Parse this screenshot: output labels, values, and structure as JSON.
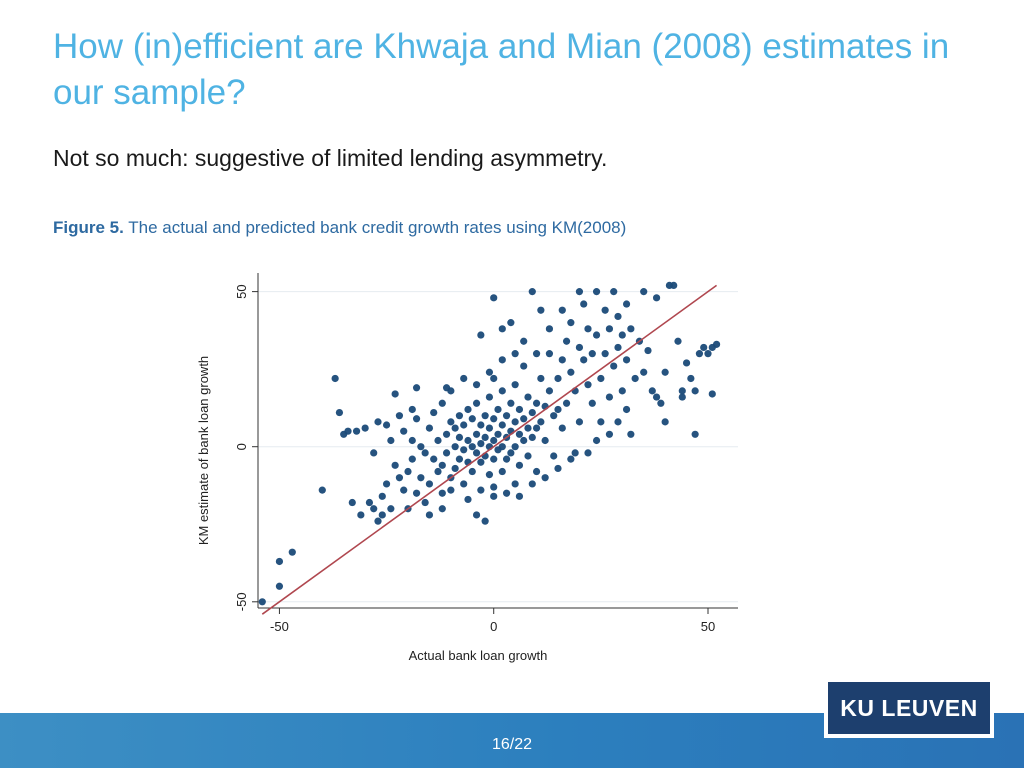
{
  "slide": {
    "title": "How (in)efficient are Khwaja and Mian (2008) estimates in our sample?",
    "subtitle": "Not so much: suggestive of limited lending asymmetry.",
    "caption_label": "Figure 5.",
    "caption_text": " The actual and predicted bank credit growth rates using KM(2008)",
    "page_number": "16/22",
    "logo_text": "KU LEUVEN"
  },
  "colors": {
    "title": "#4fb3e3",
    "points": "#1a4a78",
    "fit_line": "#b0474f",
    "footer": "#2c7fbe",
    "logo_bg": "#1d3f6e"
  },
  "chart_data": {
    "type": "scatter",
    "title": "",
    "xlabel": "Actual bank loan growth",
    "ylabel": "KM estimate of bank loan growth",
    "xlim": [
      -55,
      57
    ],
    "ylim": [
      -52,
      56
    ],
    "xticks": [
      -50,
      0,
      50
    ],
    "yticks": [
      -50,
      0,
      50
    ],
    "grid": true,
    "fit_line": {
      "x": [
        -54,
        52
      ],
      "y": [
        -54,
        52
      ]
    },
    "series": [
      {
        "points": [
          [
            -54,
            -50
          ],
          [
            -50,
            -45
          ],
          [
            -50,
            -37
          ],
          [
            -47,
            -34
          ],
          [
            -40,
            -14
          ],
          [
            -37,
            22
          ],
          [
            -36,
            11
          ],
          [
            -35,
            4
          ],
          [
            -34,
            5
          ],
          [
            -32,
            5
          ],
          [
            -31,
            -22
          ],
          [
            -30,
            6
          ],
          [
            -29,
            -18
          ],
          [
            -28,
            -20
          ],
          [
            -27,
            -24
          ],
          [
            -26,
            -22
          ],
          [
            -26,
            -16
          ],
          [
            -25,
            -12
          ],
          [
            -25,
            7
          ],
          [
            -24,
            2
          ],
          [
            -24,
            -20
          ],
          [
            -23,
            17
          ],
          [
            -23,
            -6
          ],
          [
            -22,
            -10
          ],
          [
            -22,
            10
          ],
          [
            -21,
            5
          ],
          [
            -21,
            -14
          ],
          [
            -20,
            -8
          ],
          [
            -20,
            -20
          ],
          [
            -19,
            2
          ],
          [
            -19,
            -4
          ],
          [
            -18,
            -15
          ],
          [
            -18,
            9
          ],
          [
            -17,
            0
          ],
          [
            -17,
            -10
          ],
          [
            -16,
            -2
          ],
          [
            -16,
            -18
          ],
          [
            -15,
            6
          ],
          [
            -15,
            -12
          ],
          [
            -14,
            -4
          ],
          [
            -14,
            11
          ],
          [
            -13,
            -8
          ],
          [
            -13,
            2
          ],
          [
            -12,
            14
          ],
          [
            -12,
            -6
          ],
          [
            -12,
            -15
          ],
          [
            -11,
            4
          ],
          [
            -11,
            -2
          ],
          [
            -10,
            8
          ],
          [
            -10,
            -10
          ],
          [
            -10,
            18
          ],
          [
            -9,
            0
          ],
          [
            -9,
            6
          ],
          [
            -9,
            -7
          ],
          [
            -8,
            3
          ],
          [
            -8,
            -4
          ],
          [
            -8,
            10
          ],
          [
            -7,
            -1
          ],
          [
            -7,
            7
          ],
          [
            -7,
            -12
          ],
          [
            -6,
            2
          ],
          [
            -6,
            12
          ],
          [
            -6,
            -5
          ],
          [
            -5,
            0
          ],
          [
            -5,
            9
          ],
          [
            -5,
            -8
          ],
          [
            -4,
            4
          ],
          [
            -4,
            -2
          ],
          [
            -4,
            14
          ],
          [
            -3,
            1
          ],
          [
            -3,
            7
          ],
          [
            -3,
            -5
          ],
          [
            -3,
            -14
          ],
          [
            -2,
            3
          ],
          [
            -2,
            10
          ],
          [
            -2,
            -3
          ],
          [
            -1,
            0
          ],
          [
            -1,
            6
          ],
          [
            -1,
            -9
          ],
          [
            -1,
            16
          ],
          [
            0,
            2
          ],
          [
            0,
            -4
          ],
          [
            0,
            9
          ],
          [
            0,
            22
          ],
          [
            0,
            -16
          ],
          [
            1,
            4
          ],
          [
            1,
            -1
          ],
          [
            1,
            12
          ],
          [
            2,
            0
          ],
          [
            2,
            7
          ],
          [
            2,
            -8
          ],
          [
            2,
            18
          ],
          [
            3,
            3
          ],
          [
            3,
            10
          ],
          [
            3,
            -4
          ],
          [
            4,
            5
          ],
          [
            4,
            -2
          ],
          [
            4,
            14
          ],
          [
            5,
            8
          ],
          [
            5,
            0
          ],
          [
            5,
            20
          ],
          [
            5,
            -12
          ],
          [
            6,
            4
          ],
          [
            6,
            12
          ],
          [
            6,
            -6
          ],
          [
            7,
            9
          ],
          [
            7,
            2
          ],
          [
            7,
            26
          ],
          [
            8,
            6
          ],
          [
            8,
            -3
          ],
          [
            8,
            16
          ],
          [
            9,
            11
          ],
          [
            9,
            3
          ],
          [
            10,
            14
          ],
          [
            10,
            6
          ],
          [
            10,
            -8
          ],
          [
            11,
            8
          ],
          [
            11,
            22
          ],
          [
            12,
            13
          ],
          [
            12,
            2
          ],
          [
            13,
            18
          ],
          [
            13,
            30
          ],
          [
            14,
            10
          ],
          [
            14,
            -3
          ],
          [
            15,
            22
          ],
          [
            15,
            12
          ],
          [
            16,
            28
          ],
          [
            16,
            6
          ],
          [
            17,
            34
          ],
          [
            17,
            14
          ],
          [
            18,
            24
          ],
          [
            18,
            40
          ],
          [
            19,
            18
          ],
          [
            19,
            -2
          ],
          [
            20,
            32
          ],
          [
            20,
            8
          ],
          [
            21,
            28
          ],
          [
            21,
            46
          ],
          [
            22,
            20
          ],
          [
            22,
            38
          ],
          [
            23,
            14
          ],
          [
            23,
            30
          ],
          [
            24,
            36
          ],
          [
            24,
            50
          ],
          [
            25,
            22
          ],
          [
            25,
            8
          ],
          [
            26,
            44
          ],
          [
            26,
            30
          ],
          [
            27,
            16
          ],
          [
            27,
            38
          ],
          [
            28,
            26
          ],
          [
            28,
            50
          ],
          [
            29,
            32
          ],
          [
            29,
            42
          ],
          [
            30,
            18
          ],
          [
            30,
            36
          ],
          [
            31,
            28
          ],
          [
            31,
            46
          ],
          [
            32,
            4
          ],
          [
            32,
            38
          ],
          [
            33,
            22
          ],
          [
            34,
            34
          ],
          [
            35,
            24
          ],
          [
            35,
            50
          ],
          [
            36,
            31
          ],
          [
            37,
            18
          ],
          [
            38,
            16
          ],
          [
            38,
            48
          ],
          [
            39,
            14
          ],
          [
            40,
            24
          ],
          [
            40,
            8
          ],
          [
            41,
            52
          ],
          [
            42,
            52
          ],
          [
            43,
            34
          ],
          [
            44,
            18
          ],
          [
            44,
            16
          ],
          [
            45,
            27
          ],
          [
            46,
            22
          ],
          [
            47,
            18
          ],
          [
            47,
            4
          ],
          [
            48,
            30
          ],
          [
            49,
            32
          ],
          [
            50,
            30
          ],
          [
            51,
            32
          ],
          [
            51,
            17
          ],
          [
            52,
            33
          ],
          [
            -33,
            -18
          ],
          [
            -28,
            -2
          ],
          [
            -27,
            8
          ],
          [
            -18,
            19
          ],
          [
            -15,
            -22
          ],
          [
            -12,
            -20
          ],
          [
            -10,
            -14
          ],
          [
            -6,
            -17
          ],
          [
            -4,
            -22
          ],
          [
            -2,
            -24
          ],
          [
            0,
            -13
          ],
          [
            3,
            -15
          ],
          [
            6,
            -16
          ],
          [
            9,
            -12
          ],
          [
            12,
            -10
          ],
          [
            15,
            -7
          ],
          [
            18,
            -4
          ],
          [
            22,
            -2
          ],
          [
            24,
            2
          ],
          [
            27,
            4
          ],
          [
            29,
            8
          ],
          [
            31,
            12
          ],
          [
            -19,
            12
          ],
          [
            -11,
            19
          ],
          [
            -7,
            22
          ],
          [
            -4,
            20
          ],
          [
            -1,
            24
          ],
          [
            2,
            28
          ],
          [
            5,
            30
          ],
          [
            7,
            34
          ],
          [
            10,
            30
          ],
          [
            13,
            38
          ],
          [
            0,
            48
          ],
          [
            -3,
            36
          ],
          [
            4,
            40
          ],
          [
            11,
            44
          ],
          [
            16,
            44
          ],
          [
            20,
            50
          ],
          [
            9,
            50
          ],
          [
            2,
            38
          ]
        ]
      }
    ]
  }
}
